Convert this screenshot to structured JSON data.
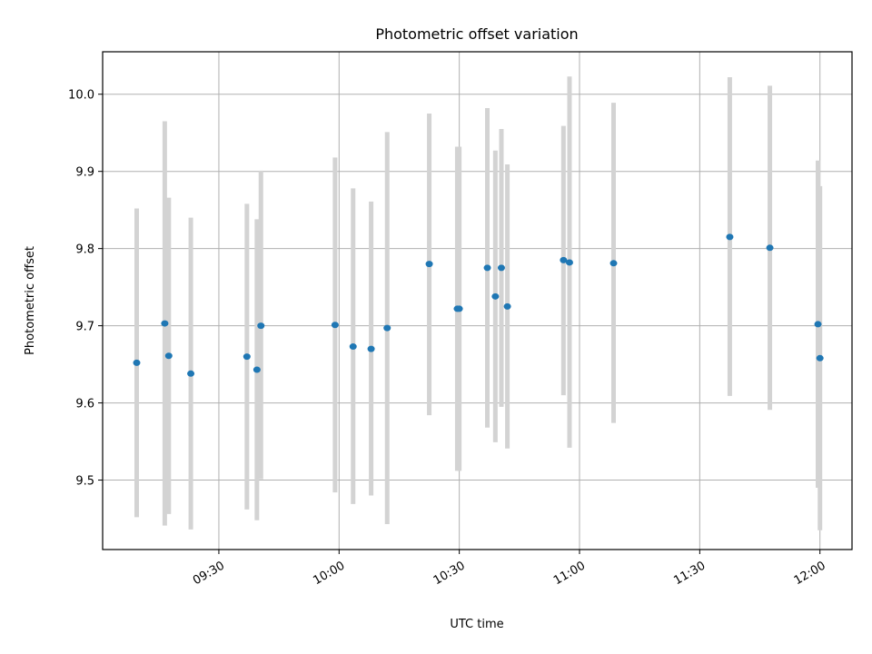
{
  "chart_data": {
    "type": "scatter",
    "title": "Photometric offset variation",
    "xlabel": "UTC time",
    "ylabel": "Photometric offset",
    "x_range": [
      "09:01",
      "12:08"
    ],
    "ylim": [
      9.41,
      10.055
    ],
    "x_ticks": [
      "09:30",
      "10:00",
      "10:30",
      "11:00",
      "11:30",
      "12:00"
    ],
    "y_ticks": [
      9.5,
      9.6,
      9.7,
      9.8,
      9.9,
      10.0
    ],
    "y_tick_labels": [
      "9.5",
      "9.6",
      "9.7",
      "9.8",
      "9.9",
      "10.0"
    ],
    "grid": true,
    "point_color": "#1f77b4",
    "errorbar_color": "#d3d3d3",
    "points": [
      {
        "t": "09:09:30",
        "y": 9.652,
        "lo": 9.452,
        "hi": 9.852
      },
      {
        "t": "09:16:30",
        "y": 9.703,
        "lo": 9.441,
        "hi": 9.965
      },
      {
        "t": "09:17:30",
        "y": 9.661,
        "lo": 9.456,
        "hi": 9.866
      },
      {
        "t": "09:23:00",
        "y": 9.638,
        "lo": 9.436,
        "hi": 9.84
      },
      {
        "t": "09:37:00",
        "y": 9.66,
        "lo": 9.462,
        "hi": 9.858
      },
      {
        "t": "09:39:30",
        "y": 9.643,
        "lo": 9.448,
        "hi": 9.838
      },
      {
        "t": "09:40:30",
        "y": 9.7,
        "lo": 9.501,
        "hi": 9.901
      },
      {
        "t": "09:59:00",
        "y": 9.701,
        "lo": 9.484,
        "hi": 9.918
      },
      {
        "t": "10:03:30",
        "y": 9.673,
        "lo": 9.469,
        "hi": 9.878
      },
      {
        "t": "10:08:00",
        "y": 9.67,
        "lo": 9.48,
        "hi": 9.861
      },
      {
        "t": "10:12:00",
        "y": 9.697,
        "lo": 9.443,
        "hi": 9.951
      },
      {
        "t": "10:22:30",
        "y": 9.78,
        "lo": 9.584,
        "hi": 9.975
      },
      {
        "t": "10:29:30",
        "y": 9.722,
        "lo": 9.512,
        "hi": 9.932
      },
      {
        "t": "10:30:00",
        "y": 9.722,
        "lo": 9.512,
        "hi": 9.932
      },
      {
        "t": "10:37:00",
        "y": 9.775,
        "lo": 9.568,
        "hi": 9.982
      },
      {
        "t": "10:39:00",
        "y": 9.738,
        "lo": 9.549,
        "hi": 9.927
      },
      {
        "t": "10:40:30",
        "y": 9.775,
        "lo": 9.595,
        "hi": 9.955
      },
      {
        "t": "10:42:00",
        "y": 9.725,
        "lo": 9.541,
        "hi": 9.909
      },
      {
        "t": "10:56:00",
        "y": 9.785,
        "lo": 9.61,
        "hi": 9.959
      },
      {
        "t": "10:57:30",
        "y": 9.782,
        "lo": 9.542,
        "hi": 10.023
      },
      {
        "t": "11:08:30",
        "y": 9.781,
        "lo": 9.574,
        "hi": 9.989
      },
      {
        "t": "11:37:30",
        "y": 9.815,
        "lo": 9.609,
        "hi": 10.022
      },
      {
        "t": "11:47:30",
        "y": 9.801,
        "lo": 9.591,
        "hi": 10.011
      },
      {
        "t": "11:59:30",
        "y": 9.702,
        "lo": 9.49,
        "hi": 9.914
      },
      {
        "t": "12:00:00",
        "y": 9.658,
        "lo": 9.435,
        "hi": 9.881
      }
    ]
  }
}
